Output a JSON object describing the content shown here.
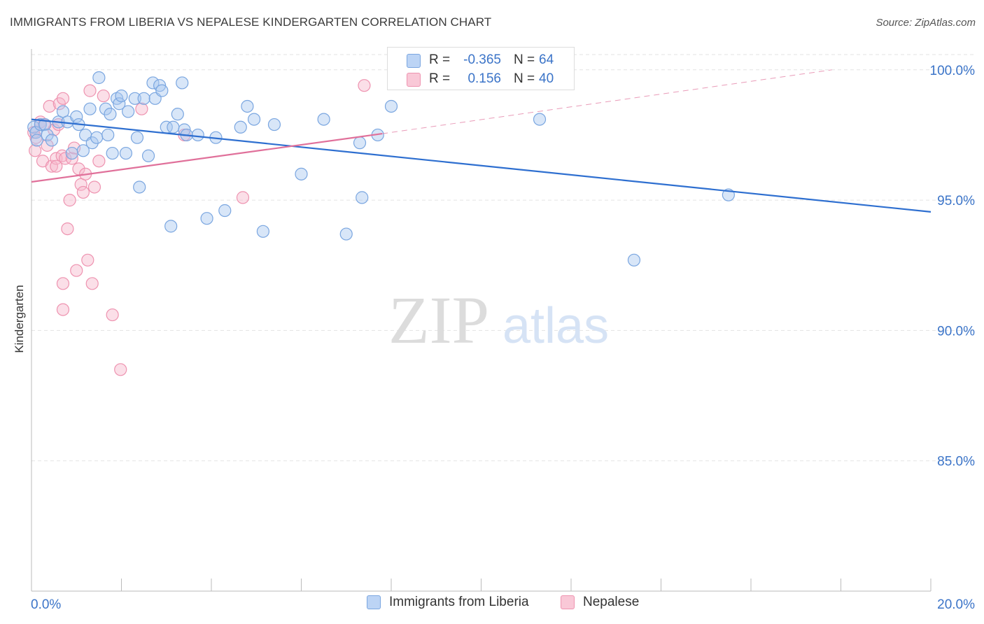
{
  "header": {
    "title": "IMMIGRANTS FROM LIBERIA VS NEPALESE KINDERGARTEN CORRELATION CHART",
    "source": "Source: ZipAtlas.com"
  },
  "watermark": {
    "zip": "ZIP",
    "atlas": "atlas"
  },
  "colors": {
    "liberia_fill": "#a9c8f0",
    "liberia_stroke": "#7aa6e0",
    "liberia_line": "#2e6fd0",
    "nepalese_fill": "#f7b9cc",
    "nepalese_stroke": "#ee93b0",
    "nepalese_line": "#e0709a",
    "axis_text": "#3b74c8"
  },
  "legend": {
    "rows": [
      {
        "r_label": "R =",
        "r_value": "-0.365",
        "n_label": "N =",
        "n_value": "64"
      },
      {
        "r_label": "R =",
        "r_value": "0.156",
        "n_label": "N =",
        "n_value": "40"
      }
    ],
    "bottom": [
      "Immigrants from Liberia",
      "Nepalese"
    ]
  },
  "chart_data": {
    "type": "scatter",
    "title": "IMMIGRANTS FROM LIBERIA VS NEPALESE KINDERGARTEN CORRELATION CHART",
    "xlabel": "",
    "ylabel": "Kindergarten",
    "xlim": [
      0,
      20
    ],
    "ylim": [
      80,
      100.8
    ],
    "x_tick_labels": [
      "0.0%",
      "20.0%"
    ],
    "y_ticks": [
      85,
      90,
      95,
      100
    ],
    "y_tick_labels": [
      "85.0%",
      "90.0%",
      "95.0%",
      "100.0%"
    ],
    "grid": true,
    "legend_position": "top-center",
    "series": [
      {
        "name": "Immigrants from Liberia",
        "color": "#a9c8f0",
        "r": -0.365,
        "n": 64,
        "trend": {
          "x": [
            0,
            20
          ],
          "y": [
            98.1,
            94.55
          ]
        },
        "points": [
          [
            0.05,
            97.8
          ],
          [
            0.1,
            97.6
          ],
          [
            0.12,
            97.3
          ],
          [
            0.2,
            97.9
          ],
          [
            0.3,
            97.9
          ],
          [
            0.35,
            97.5
          ],
          [
            0.45,
            97.3
          ],
          [
            0.6,
            98.0
          ],
          [
            0.7,
            98.4
          ],
          [
            0.8,
            98.0
          ],
          [
            0.9,
            96.8
          ],
          [
            1.0,
            98.2
          ],
          [
            1.05,
            97.9
          ],
          [
            1.15,
            96.9
          ],
          [
            1.2,
            97.5
          ],
          [
            1.3,
            98.5
          ],
          [
            1.35,
            97.2
          ],
          [
            1.45,
            97.4
          ],
          [
            1.5,
            99.7
          ],
          [
            1.65,
            98.5
          ],
          [
            1.7,
            97.5
          ],
          [
            1.75,
            98.3
          ],
          [
            1.8,
            96.8
          ],
          [
            1.9,
            98.9
          ],
          [
            1.95,
            98.7
          ],
          [
            2.0,
            99.0
          ],
          [
            2.1,
            96.8
          ],
          [
            2.15,
            98.4
          ],
          [
            2.3,
            98.9
          ],
          [
            2.35,
            97.4
          ],
          [
            2.4,
            95.5
          ],
          [
            2.5,
            98.9
          ],
          [
            2.6,
            96.7
          ],
          [
            2.7,
            99.5
          ],
          [
            2.75,
            98.9
          ],
          [
            2.85,
            99.4
          ],
          [
            2.9,
            99.2
          ],
          [
            3.0,
            97.8
          ],
          [
            3.1,
            94.0
          ],
          [
            3.15,
            97.8
          ],
          [
            3.25,
            98.3
          ],
          [
            3.35,
            99.5
          ],
          [
            3.4,
            97.7
          ],
          [
            3.45,
            97.5
          ],
          [
            3.7,
            97.5
          ],
          [
            3.9,
            94.3
          ],
          [
            4.1,
            97.4
          ],
          [
            4.3,
            94.6
          ],
          [
            4.65,
            97.8
          ],
          [
            4.8,
            98.6
          ],
          [
            4.95,
            98.1
          ],
          [
            5.15,
            93.8
          ],
          [
            5.4,
            97.9
          ],
          [
            6.0,
            96.0
          ],
          [
            6.5,
            98.1
          ],
          [
            7.0,
            93.7
          ],
          [
            7.3,
            97.2
          ],
          [
            7.35,
            95.1
          ],
          [
            7.7,
            97.5
          ],
          [
            8.0,
            98.6
          ],
          [
            9.3,
            100.0
          ],
          [
            11.3,
            98.1
          ],
          [
            13.4,
            92.7
          ],
          [
            15.5,
            95.2
          ]
        ]
      },
      {
        "name": "Nepalese",
        "color": "#f7b9cc",
        "r": 0.156,
        "n": 40,
        "trend": {
          "x": [
            0,
            7.8
          ],
          "y": [
            95.7,
            97.55
          ]
        },
        "trend_extension": {
          "x": [
            7.8,
            17.8
          ],
          "y": [
            97.55,
            100.0
          ]
        },
        "points": [
          [
            0.05,
            97.6
          ],
          [
            0.08,
            96.9
          ],
          [
            0.1,
            97.4
          ],
          [
            0.2,
            98.0
          ],
          [
            0.25,
            96.5
          ],
          [
            0.28,
            97.9
          ],
          [
            0.35,
            97.1
          ],
          [
            0.4,
            98.6
          ],
          [
            0.45,
            96.3
          ],
          [
            0.5,
            97.7
          ],
          [
            0.55,
            96.6
          ],
          [
            0.55,
            96.3
          ],
          [
            0.6,
            97.9
          ],
          [
            0.62,
            98.7
          ],
          [
            0.68,
            96.7
          ],
          [
            0.7,
            91.8
          ],
          [
            0.7,
            98.9
          ],
          [
            0.75,
            96.6
          ],
          [
            0.8,
            93.9
          ],
          [
            0.85,
            95.0
          ],
          [
            0.9,
            96.6
          ],
          [
            0.95,
            97.0
          ],
          [
            1.0,
            92.3
          ],
          [
            1.05,
            96.2
          ],
          [
            1.1,
            95.6
          ],
          [
            1.15,
            95.3
          ],
          [
            1.2,
            96.0
          ],
          [
            1.25,
            92.7
          ],
          [
            1.3,
            99.2
          ],
          [
            1.35,
            91.8
          ],
          [
            1.4,
            95.5
          ],
          [
            1.5,
            96.5
          ],
          [
            1.6,
            99.0
          ],
          [
            1.8,
            90.6
          ],
          [
            1.98,
            88.5
          ],
          [
            2.45,
            98.5
          ],
          [
            3.4,
            97.5
          ],
          [
            4.7,
            95.1
          ],
          [
            7.4,
            99.4
          ],
          [
            0.7,
            90.8
          ]
        ]
      }
    ]
  }
}
